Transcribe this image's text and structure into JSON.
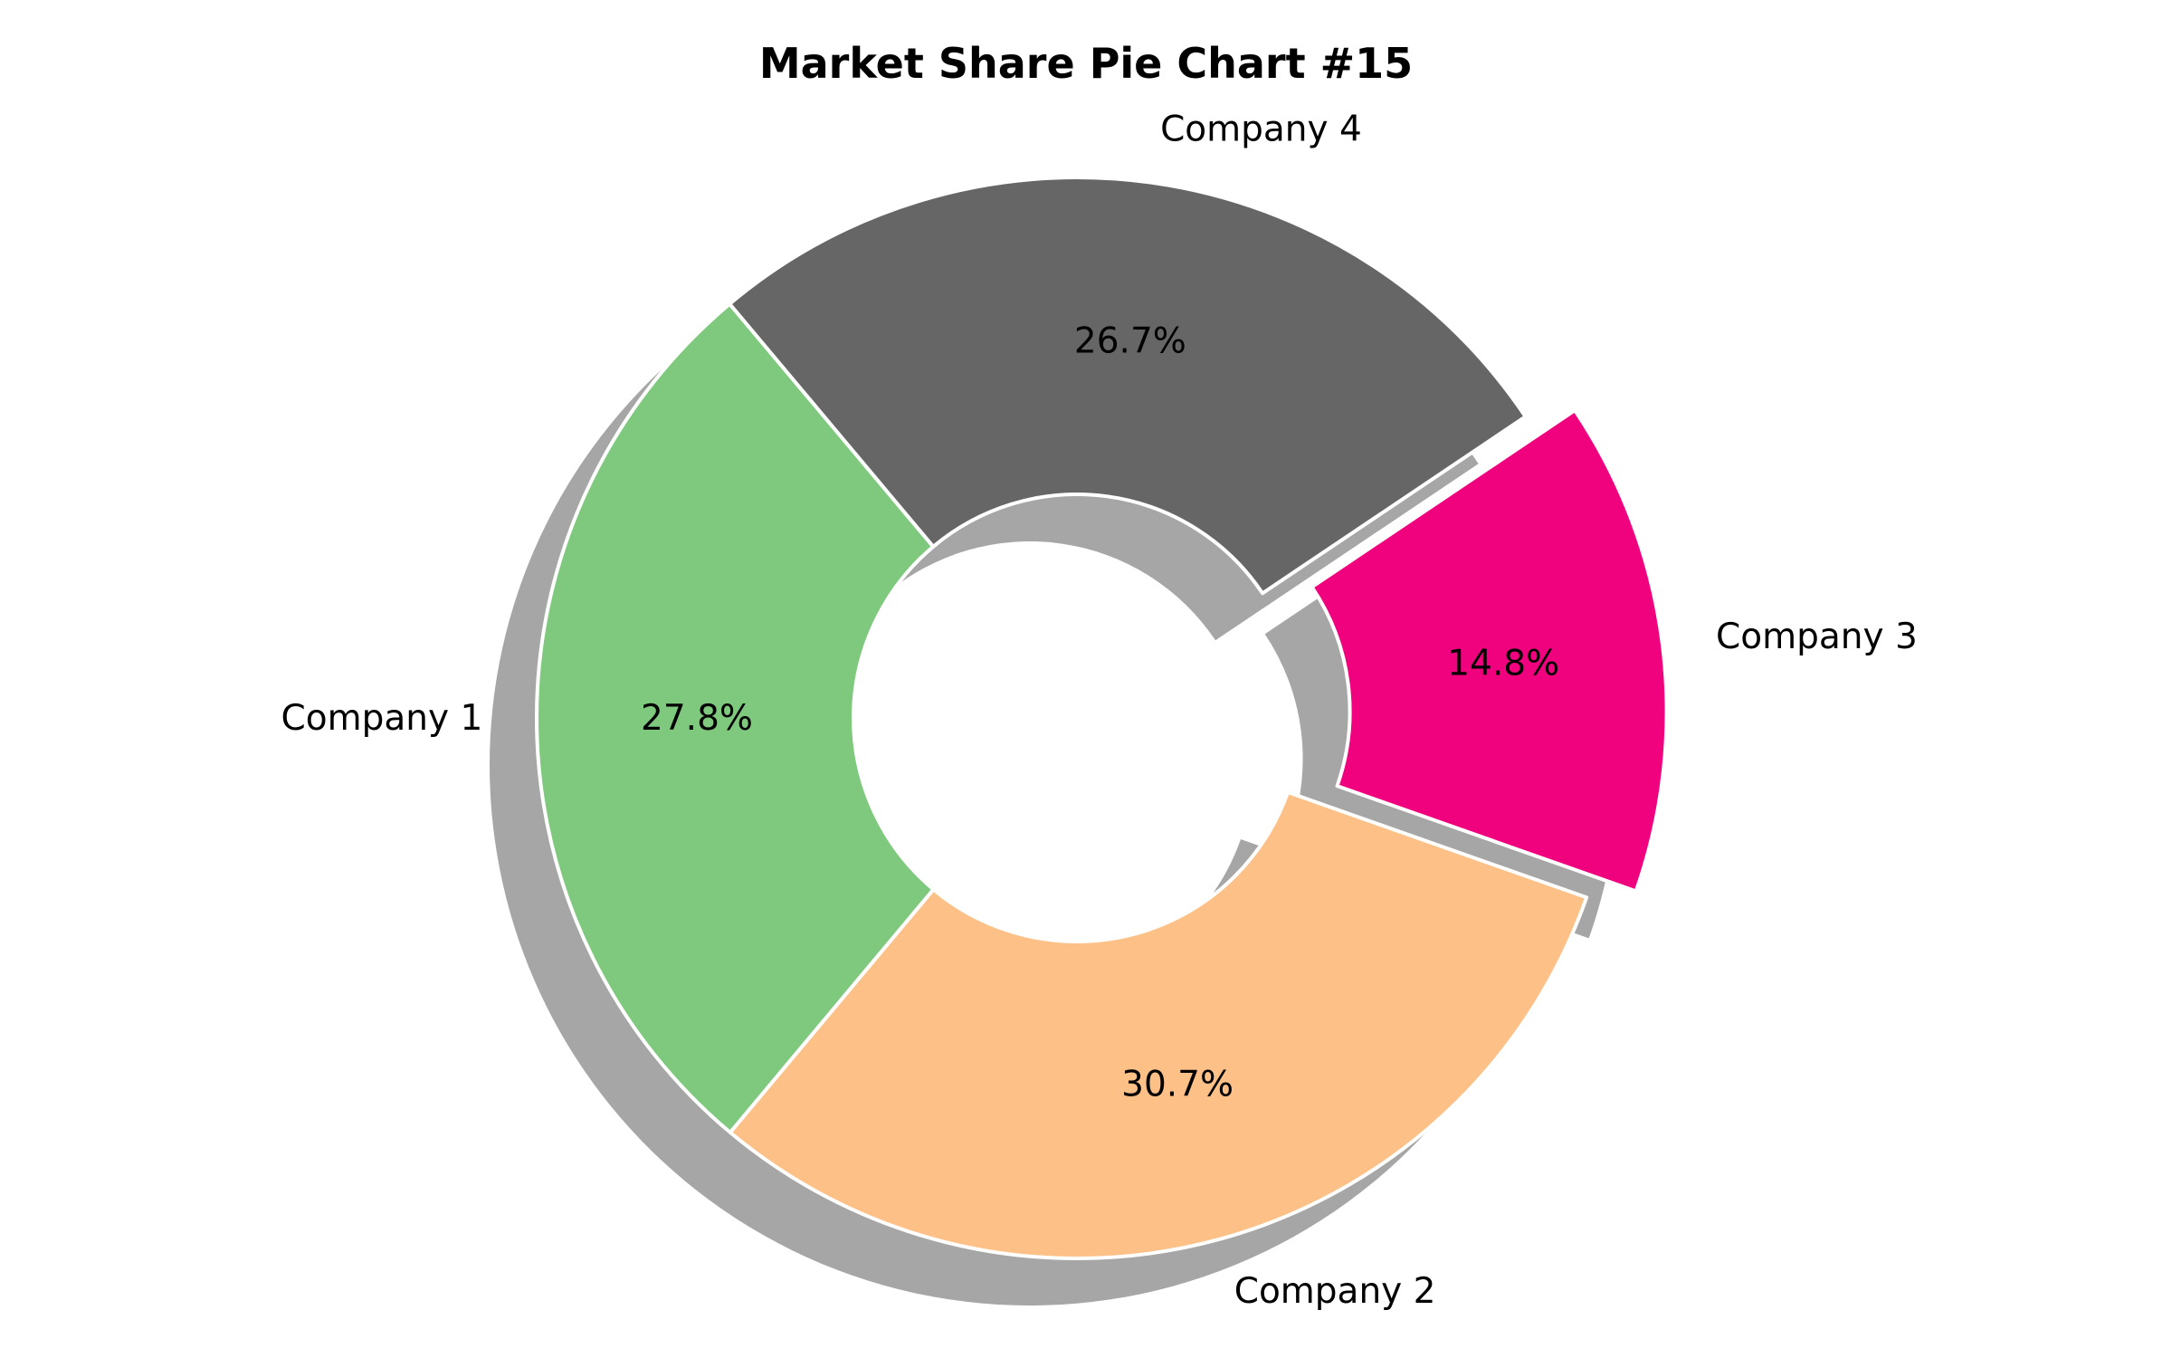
{
  "chart_data": {
    "type": "pie",
    "variant": "donut",
    "title": "Market Share Pie Chart #15",
    "categories": [
      "Company 1",
      "Company 2",
      "Company 3",
      "Company 4"
    ],
    "values": [
      27.8,
      30.7,
      14.8,
      26.7
    ],
    "percent_labels": [
      "27.8%",
      "30.7%",
      "14.8%",
      "26.7%"
    ],
    "colors": [
      "#7fc97f",
      "#fdc086",
      "#f0027f",
      "#666666"
    ],
    "exploded": [
      "Company 3"
    ],
    "shadow": true,
    "start_angle_deg": 130,
    "direction": "counterclockwise",
    "legend": "none"
  }
}
